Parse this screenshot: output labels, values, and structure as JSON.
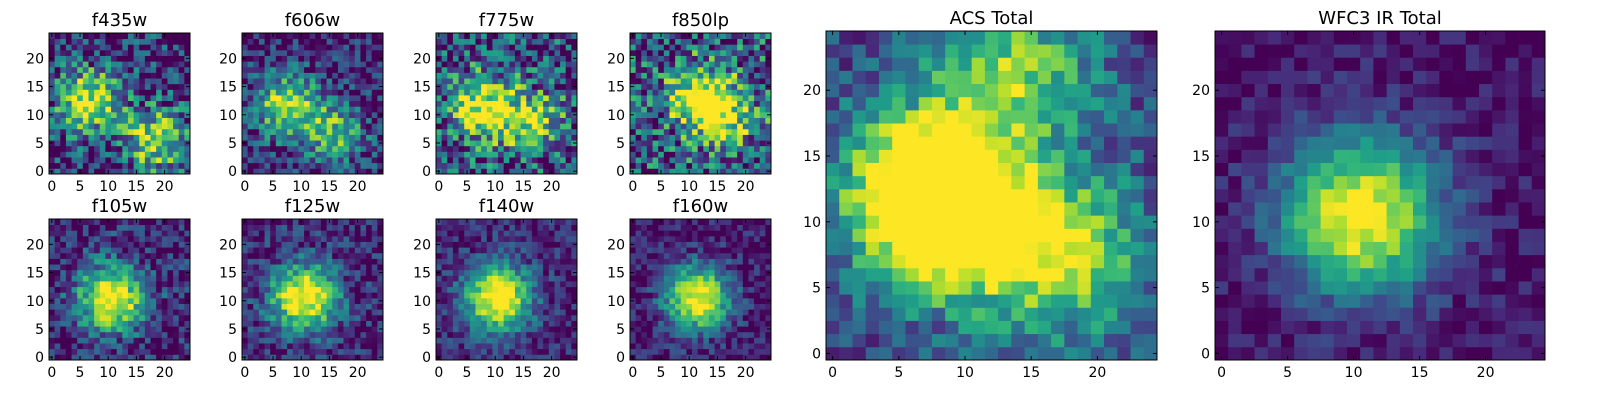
{
  "chart_data": [
    {
      "type": "heatmap",
      "title": "f435w",
      "xticks": [
        "0",
        "5",
        "10",
        "15",
        "20"
      ],
      "yticks": [
        "0",
        "5",
        "10",
        "15",
        "20"
      ],
      "xlim": [
        0,
        25
      ],
      "ylim": [
        0,
        25
      ],
      "grid": false,
      "colormap": "viridis",
      "peaks": [
        {
          "x": 7,
          "y": 13,
          "v": 0.85
        },
        {
          "x": 19,
          "y": 6,
          "v": 0.75
        }
      ],
      "background": 0.35,
      "noise": 0.38
    },
    {
      "type": "heatmap",
      "title": "f606w",
      "xticks": [
        "0",
        "5",
        "10",
        "15",
        "20"
      ],
      "yticks": [
        "0",
        "5",
        "10",
        "15",
        "20"
      ],
      "xlim": [
        0,
        25
      ],
      "ylim": [
        0,
        25
      ],
      "grid": false,
      "colormap": "viridis",
      "peaks": [
        {
          "x": 8,
          "y": 12,
          "v": 0.85
        },
        {
          "x": 17,
          "y": 7,
          "v": 0.6
        }
      ],
      "background": 0.3,
      "noise": 0.3
    },
    {
      "type": "heatmap",
      "title": "f775w",
      "xticks": [
        "0",
        "5",
        "10",
        "15",
        "20"
      ],
      "yticks": [
        "0",
        "5",
        "10",
        "15",
        "20"
      ],
      "xlim": [
        0,
        25
      ],
      "ylim": [
        0,
        25
      ],
      "grid": false,
      "colormap": "viridis",
      "peaks": [
        {
          "x": 8,
          "y": 12,
          "v": 0.8
        },
        {
          "x": 17,
          "y": 9,
          "v": 0.6
        }
      ],
      "background": 0.45,
      "noise": 0.42
    },
    {
      "type": "heatmap",
      "title": "f850lp",
      "xticks": [
        "0",
        "5",
        "10",
        "15",
        "20"
      ],
      "yticks": [
        "0",
        "5",
        "10",
        "15",
        "20"
      ],
      "xlim": [
        0,
        25
      ],
      "ylim": [
        0,
        25
      ],
      "grid": false,
      "colormap": "viridis",
      "peaks": [
        {
          "x": 12,
          "y": 14,
          "v": 0.7
        },
        {
          "x": 17,
          "y": 10,
          "v": 0.6
        }
      ],
      "background": 0.5,
      "noise": 0.45
    },
    {
      "type": "heatmap",
      "title": "f105w",
      "xticks": [
        "0",
        "5",
        "10",
        "15",
        "20"
      ],
      "yticks": [
        "0",
        "5",
        "10",
        "15",
        "20"
      ],
      "xlim": [
        0,
        25
      ],
      "ylim": [
        0,
        25
      ],
      "grid": false,
      "colormap": "viridis",
      "peaks": [
        {
          "x": 11,
          "y": 11,
          "v": 1.0
        }
      ],
      "background": 0.35,
      "noise": 0.25
    },
    {
      "type": "heatmap",
      "title": "f125w",
      "xticks": [
        "0",
        "5",
        "10",
        "15",
        "20"
      ],
      "yticks": [
        "0",
        "5",
        "10",
        "15",
        "20"
      ],
      "xlim": [
        0,
        25
      ],
      "ylim": [
        0,
        25
      ],
      "grid": false,
      "colormap": "viridis",
      "peaks": [
        {
          "x": 11,
          "y": 11,
          "v": 1.0
        }
      ],
      "background": 0.35,
      "noise": 0.22
    },
    {
      "type": "heatmap",
      "title": "f140w",
      "xticks": [
        "0",
        "5",
        "10",
        "15",
        "20"
      ],
      "yticks": [
        "0",
        "5",
        "10",
        "15",
        "20"
      ],
      "xlim": [
        0,
        25
      ],
      "ylim": [
        0,
        25
      ],
      "grid": false,
      "colormap": "viridis",
      "peaks": [
        {
          "x": 11,
          "y": 11,
          "v": 1.0
        }
      ],
      "background": 0.35,
      "noise": 0.18
    },
    {
      "type": "heatmap",
      "title": "f160w",
      "xticks": [
        "0",
        "5",
        "10",
        "15",
        "20"
      ],
      "yticks": [
        "0",
        "5",
        "10",
        "15",
        "20"
      ],
      "xlim": [
        0,
        25
      ],
      "ylim": [
        0,
        25
      ],
      "grid": false,
      "colormap": "viridis",
      "peaks": [
        {
          "x": 12,
          "y": 11,
          "v": 1.0
        }
      ],
      "background": 0.3,
      "noise": 0.18
    },
    {
      "type": "heatmap",
      "title": "ACS Total",
      "xticks": [
        "0",
        "5",
        "10",
        "15",
        "20"
      ],
      "yticks": [
        "0",
        "5",
        "10",
        "15",
        "20"
      ],
      "xlim": [
        0,
        25
      ],
      "ylim": [
        0,
        25
      ],
      "grid": false,
      "colormap": "viridis",
      "peaks": [
        {
          "x": 7,
          "y": 13,
          "v": 0.85
        },
        {
          "x": 10,
          "y": 11,
          "v": 0.9
        },
        {
          "x": 18,
          "y": 8,
          "v": 0.7
        },
        {
          "x": 14,
          "y": 22,
          "v": 0.6
        }
      ],
      "background": 0.45,
      "noise": 0.2
    },
    {
      "type": "heatmap",
      "title": "WFC3 IR Total",
      "xticks": [
        "0",
        "5",
        "10",
        "15",
        "20"
      ],
      "yticks": [
        "0",
        "5",
        "10",
        "15",
        "20"
      ],
      "xlim": [
        0,
        25
      ],
      "ylim": [
        0,
        25
      ],
      "grid": false,
      "colormap": "viridis",
      "peaks": [
        {
          "x": 11,
          "y": 11,
          "v": 1.0
        }
      ],
      "background": 0.3,
      "noise": 0.12
    }
  ]
}
